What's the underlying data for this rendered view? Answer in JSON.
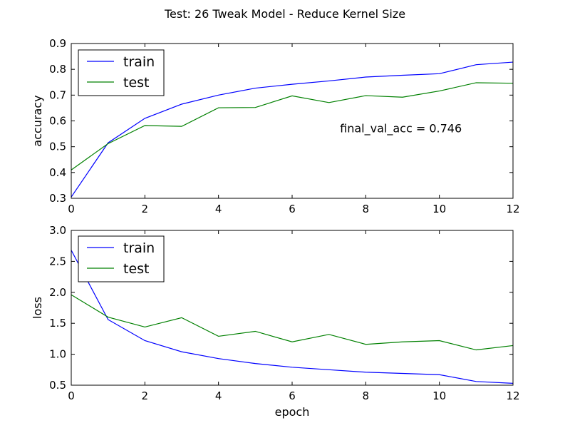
{
  "figure": {
    "title": "Test: 26 Tweak Model - Reduce Kernel Size"
  },
  "chart_data": [
    {
      "type": "line",
      "title": "",
      "xlabel": "",
      "ylabel": "accuracy",
      "xlim": [
        0,
        12
      ],
      "ylim": [
        0.3,
        0.9
      ],
      "xticks": [
        0,
        2,
        4,
        6,
        8,
        10,
        12
      ],
      "yticks": [
        0.3,
        0.4,
        0.5,
        0.6,
        0.7,
        0.8,
        0.9
      ],
      "ytick_decimals": 1,
      "grid": false,
      "legend": "top-left",
      "x": [
        0,
        1,
        2,
        3,
        4,
        5,
        6,
        7,
        8,
        9,
        10,
        11,
        12
      ],
      "series": [
        {
          "name": "train",
          "color": "#0000ff",
          "values": [
            0.305,
            0.515,
            0.61,
            0.665,
            0.7,
            0.727,
            0.742,
            0.755,
            0.77,
            0.777,
            0.783,
            0.818,
            0.828
          ]
        },
        {
          "name": "test",
          "color": "#008000",
          "values": [
            0.41,
            0.512,
            0.582,
            0.579,
            0.651,
            0.652,
            0.697,
            0.671,
            0.698,
            0.692,
            0.716,
            0.748,
            0.746
          ]
        }
      ],
      "annotations": [
        {
          "text": "final_val_acc = 0.746",
          "x": 7.3,
          "y": 0.57
        }
      ]
    },
    {
      "type": "line",
      "title": "",
      "xlabel": "epoch",
      "ylabel": "loss",
      "xlim": [
        0,
        12
      ],
      "ylim": [
        0.5,
        3.0
      ],
      "xticks": [
        0,
        2,
        4,
        6,
        8,
        10,
        12
      ],
      "yticks": [
        0.5,
        1.0,
        1.5,
        2.0,
        2.5,
        3.0
      ],
      "ytick_decimals": 1,
      "grid": false,
      "legend": "top-left",
      "x": [
        0,
        1,
        2,
        3,
        4,
        5,
        6,
        7,
        8,
        9,
        10,
        11,
        12
      ],
      "series": [
        {
          "name": "train",
          "color": "#0000ff",
          "values": [
            2.68,
            1.56,
            1.22,
            1.04,
            0.93,
            0.85,
            0.79,
            0.75,
            0.71,
            0.69,
            0.67,
            0.56,
            0.53
          ]
        },
        {
          "name": "test",
          "color": "#008000",
          "values": [
            1.96,
            1.6,
            1.44,
            1.59,
            1.29,
            1.37,
            1.2,
            1.32,
            1.16,
            1.2,
            1.22,
            1.07,
            1.14
          ]
        }
      ],
      "annotations": []
    }
  ]
}
